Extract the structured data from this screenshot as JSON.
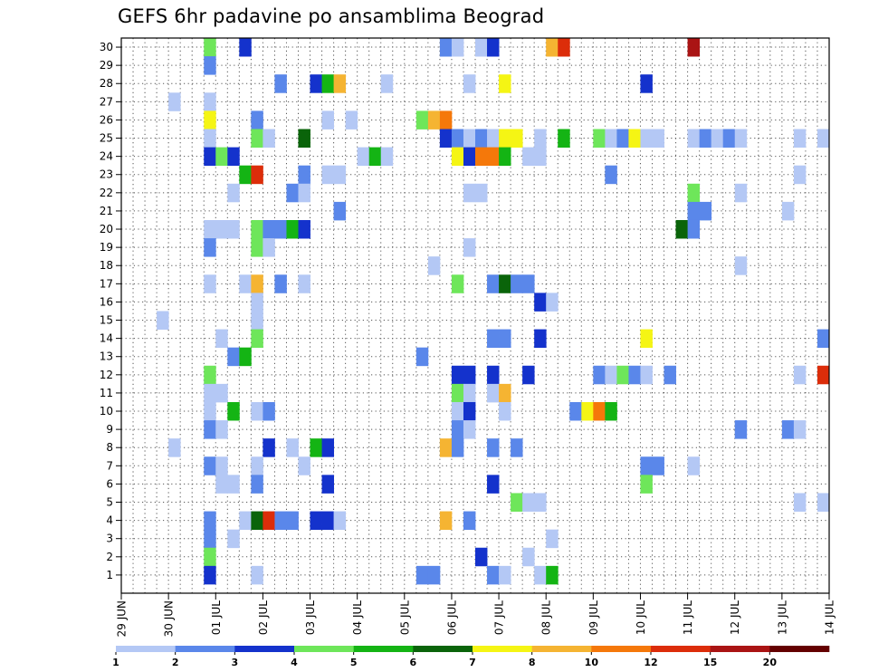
{
  "chart_data": {
    "type": "heatmap",
    "title": "GEFS 6hr padavine po ansamblima Beograd",
    "xlabel": "",
    "ylabel": "",
    "x_ticks": [
      "29 JUN",
      "30 JUN",
      "01 JUL",
      "02 JUL",
      "03 JUL",
      "04 JUL",
      "05 JUL",
      "06 JUL",
      "07 JUL",
      "08 JUL",
      "09 JUL",
      "10 JUL",
      "11 JUL",
      "12 JUL",
      "13 JUL",
      "14 JUL"
    ],
    "xlim": [
      0,
      60
    ],
    "y_ticks": [
      "1",
      "2",
      "3",
      "4",
      "5",
      "6",
      "7",
      "8",
      "9",
      "10",
      "11",
      "12",
      "13",
      "14",
      "15",
      "16",
      "17",
      "18",
      "19",
      "20",
      "21",
      "22",
      "23",
      "24",
      "25",
      "26",
      "27",
      "28",
      "29",
      "30"
    ],
    "ylim": [
      0,
      30
    ],
    "grid": true,
    "legend_position": "bottom",
    "legend_labels": [
      "1",
      "2",
      "3",
      "4",
      "5",
      "6",
      "7",
      "8",
      "10",
      "12",
      "15",
      "20"
    ],
    "level_colors": [
      "#b4c8f5",
      "#5a87ea",
      "#1432cc",
      "#6ee65a",
      "#14b414",
      "#0a640a",
      "#f5f514",
      "#f5b432",
      "#f5780a",
      "#dc2d0a",
      "#aa1414",
      "#640000"
    ],
    "cells": [
      {
        "member": 30,
        "t": 7,
        "level": 4
      },
      {
        "member": 30,
        "t": 10,
        "level": 3
      },
      {
        "member": 30,
        "t": 27,
        "level": 2
      },
      {
        "member": 30,
        "t": 28,
        "level": 1
      },
      {
        "member": 30,
        "t": 30,
        "level": 1
      },
      {
        "member": 30,
        "t": 31,
        "level": 3
      },
      {
        "member": 30,
        "t": 36,
        "level": 8
      },
      {
        "member": 30,
        "t": 37,
        "level": 10
      },
      {
        "member": 30,
        "t": 48,
        "level": 11
      },
      {
        "member": 29,
        "t": 7,
        "level": 2
      },
      {
        "member": 28,
        "t": 13,
        "level": 2
      },
      {
        "member": 28,
        "t": 16,
        "level": 3
      },
      {
        "member": 28,
        "t": 17,
        "level": 5
      },
      {
        "member": 28,
        "t": 18,
        "level": 8
      },
      {
        "member": 28,
        "t": 22,
        "level": 1
      },
      {
        "member": 28,
        "t": 29,
        "level": 1
      },
      {
        "member": 28,
        "t": 32,
        "level": 7
      },
      {
        "member": 28,
        "t": 44,
        "level": 3
      },
      {
        "member": 27,
        "t": 4,
        "level": 1
      },
      {
        "member": 27,
        "t": 7,
        "level": 1
      },
      {
        "member": 26,
        "t": 7,
        "level": 7
      },
      {
        "member": 26,
        "t": 11,
        "level": 2
      },
      {
        "member": 26,
        "t": 17,
        "level": 1
      },
      {
        "member": 26,
        "t": 19,
        "level": 1
      },
      {
        "member": 26,
        "t": 25,
        "level": 4
      },
      {
        "member": 26,
        "t": 26,
        "level": 8
      },
      {
        "member": 26,
        "t": 27,
        "level": 9
      },
      {
        "member": 25,
        "t": 7,
        "level": 1
      },
      {
        "member": 25,
        "t": 11,
        "level": 4
      },
      {
        "member": 25,
        "t": 12,
        "level": 1
      },
      {
        "member": 25,
        "t": 15,
        "level": 6
      },
      {
        "member": 25,
        "t": 27,
        "level": 3
      },
      {
        "member": 25,
        "t": 28,
        "level": 2
      },
      {
        "member": 25,
        "t": 29,
        "level": 1
      },
      {
        "member": 25,
        "t": 30,
        "level": 2
      },
      {
        "member": 25,
        "t": 31,
        "level": 1
      },
      {
        "member": 25,
        "t": 32,
        "level": 7
      },
      {
        "member": 25,
        "t": 33,
        "level": 7
      },
      {
        "member": 25,
        "t": 35,
        "level": 1
      },
      {
        "member": 25,
        "t": 37,
        "level": 5
      },
      {
        "member": 25,
        "t": 40,
        "level": 4
      },
      {
        "member": 25,
        "t": 41,
        "level": 1
      },
      {
        "member": 25,
        "t": 42,
        "level": 2
      },
      {
        "member": 25,
        "t": 43,
        "level": 7
      },
      {
        "member": 25,
        "t": 44,
        "level": 1
      },
      {
        "member": 25,
        "t": 45,
        "level": 1
      },
      {
        "member": 25,
        "t": 48,
        "level": 1
      },
      {
        "member": 25,
        "t": 49,
        "level": 2
      },
      {
        "member": 25,
        "t": 50,
        "level": 1
      },
      {
        "member": 25,
        "t": 51,
        "level": 2
      },
      {
        "member": 25,
        "t": 52,
        "level": 1
      },
      {
        "member": 25,
        "t": 57,
        "level": 1
      },
      {
        "member": 25,
        "t": 59,
        "level": 1
      },
      {
        "member": 24,
        "t": 7,
        "level": 3
      },
      {
        "member": 24,
        "t": 8,
        "level": 4
      },
      {
        "member": 24,
        "t": 9,
        "level": 3
      },
      {
        "member": 24,
        "t": 20,
        "level": 1
      },
      {
        "member": 24,
        "t": 21,
        "level": 5
      },
      {
        "member": 24,
        "t": 22,
        "level": 1
      },
      {
        "member": 24,
        "t": 28,
        "level": 7
      },
      {
        "member": 24,
        "t": 29,
        "level": 3
      },
      {
        "member": 24,
        "t": 30,
        "level": 9
      },
      {
        "member": 24,
        "t": 31,
        "level": 9
      },
      {
        "member": 24,
        "t": 32,
        "level": 5
      },
      {
        "member": 24,
        "t": 34,
        "level": 1
      },
      {
        "member": 24,
        "t": 35,
        "level": 1
      },
      {
        "member": 23,
        "t": 10,
        "level": 5
      },
      {
        "member": 23,
        "t": 11,
        "level": 10
      },
      {
        "member": 23,
        "t": 15,
        "level": 2
      },
      {
        "member": 23,
        "t": 17,
        "level": 1
      },
      {
        "member": 23,
        "t": 18,
        "level": 1
      },
      {
        "member": 23,
        "t": 41,
        "level": 2
      },
      {
        "member": 23,
        "t": 57,
        "level": 1
      },
      {
        "member": 22,
        "t": 9,
        "level": 1
      },
      {
        "member": 22,
        "t": 14,
        "level": 2
      },
      {
        "member": 22,
        "t": 15,
        "level": 1
      },
      {
        "member": 22,
        "t": 29,
        "level": 1
      },
      {
        "member": 22,
        "t": 30,
        "level": 1
      },
      {
        "member": 22,
        "t": 48,
        "level": 4
      },
      {
        "member": 22,
        "t": 52,
        "level": 1
      },
      {
        "member": 21,
        "t": 18,
        "level": 2
      },
      {
        "member": 21,
        "t": 48,
        "level": 2
      },
      {
        "member": 21,
        "t": 49,
        "level": 2
      },
      {
        "member": 21,
        "t": 56,
        "level": 1
      },
      {
        "member": 20,
        "t": 7,
        "level": 1
      },
      {
        "member": 20,
        "t": 8,
        "level": 1
      },
      {
        "member": 20,
        "t": 9,
        "level": 1
      },
      {
        "member": 20,
        "t": 11,
        "level": 4
      },
      {
        "member": 20,
        "t": 12,
        "level": 2
      },
      {
        "member": 20,
        "t": 13,
        "level": 2
      },
      {
        "member": 20,
        "t": 14,
        "level": 5
      },
      {
        "member": 20,
        "t": 15,
        "level": 3
      },
      {
        "member": 20,
        "t": 47,
        "level": 6
      },
      {
        "member": 20,
        "t": 48,
        "level": 2
      },
      {
        "member": 19,
        "t": 7,
        "level": 2
      },
      {
        "member": 19,
        "t": 11,
        "level": 4
      },
      {
        "member": 19,
        "t": 12,
        "level": 1
      },
      {
        "member": 19,
        "t": 29,
        "level": 1
      },
      {
        "member": 18,
        "t": 26,
        "level": 1
      },
      {
        "member": 18,
        "t": 52,
        "level": 1
      },
      {
        "member": 17,
        "t": 7,
        "level": 1
      },
      {
        "member": 17,
        "t": 10,
        "level": 1
      },
      {
        "member": 17,
        "t": 11,
        "level": 8
      },
      {
        "member": 17,
        "t": 13,
        "level": 2
      },
      {
        "member": 17,
        "t": 15,
        "level": 1
      },
      {
        "member": 17,
        "t": 28,
        "level": 4
      },
      {
        "member": 17,
        "t": 31,
        "level": 2
      },
      {
        "member": 17,
        "t": 32,
        "level": 6
      },
      {
        "member": 17,
        "t": 33,
        "level": 2
      },
      {
        "member": 17,
        "t": 34,
        "level": 2
      },
      {
        "member": 16,
        "t": 11,
        "level": 1
      },
      {
        "member": 16,
        "t": 35,
        "level": 3
      },
      {
        "member": 16,
        "t": 36,
        "level": 1
      },
      {
        "member": 15,
        "t": 3,
        "level": 1
      },
      {
        "member": 15,
        "t": 11,
        "level": 1
      },
      {
        "member": 14,
        "t": 8,
        "level": 1
      },
      {
        "member": 14,
        "t": 11,
        "level": 4
      },
      {
        "member": 14,
        "t": 31,
        "level": 2
      },
      {
        "member": 14,
        "t": 32,
        "level": 2
      },
      {
        "member": 14,
        "t": 35,
        "level": 3
      },
      {
        "member": 14,
        "t": 44,
        "level": 7
      },
      {
        "member": 14,
        "t": 59,
        "level": 2
      },
      {
        "member": 13,
        "t": 9,
        "level": 2
      },
      {
        "member": 13,
        "t": 10,
        "level": 5
      },
      {
        "member": 13,
        "t": 25,
        "level": 2
      },
      {
        "member": 12,
        "t": 7,
        "level": 4
      },
      {
        "member": 12,
        "t": 28,
        "level": 3
      },
      {
        "member": 12,
        "t": 29,
        "level": 3
      },
      {
        "member": 12,
        "t": 31,
        "level": 3
      },
      {
        "member": 12,
        "t": 34,
        "level": 3
      },
      {
        "member": 12,
        "t": 40,
        "level": 2
      },
      {
        "member": 12,
        "t": 41,
        "level": 1
      },
      {
        "member": 12,
        "t": 42,
        "level": 4
      },
      {
        "member": 12,
        "t": 43,
        "level": 2
      },
      {
        "member": 12,
        "t": 44,
        "level": 1
      },
      {
        "member": 12,
        "t": 46,
        "level": 2
      },
      {
        "member": 12,
        "t": 57,
        "level": 1
      },
      {
        "member": 12,
        "t": 59,
        "level": 10
      },
      {
        "member": 11,
        "t": 7,
        "level": 1
      },
      {
        "member": 11,
        "t": 8,
        "level": 1
      },
      {
        "member": 11,
        "t": 28,
        "level": 4
      },
      {
        "member": 11,
        "t": 29,
        "level": 1
      },
      {
        "member": 11,
        "t": 31,
        "level": 1
      },
      {
        "member": 11,
        "t": 32,
        "level": 8
      },
      {
        "member": 10,
        "t": 7,
        "level": 1
      },
      {
        "member": 10,
        "t": 9,
        "level": 5
      },
      {
        "member": 10,
        "t": 11,
        "level": 1
      },
      {
        "member": 10,
        "t": 12,
        "level": 2
      },
      {
        "member": 10,
        "t": 28,
        "level": 1
      },
      {
        "member": 10,
        "t": 29,
        "level": 3
      },
      {
        "member": 10,
        "t": 32,
        "level": 1
      },
      {
        "member": 10,
        "t": 38,
        "level": 2
      },
      {
        "member": 10,
        "t": 39,
        "level": 7
      },
      {
        "member": 10,
        "t": 40,
        "level": 9
      },
      {
        "member": 10,
        "t": 41,
        "level": 5
      },
      {
        "member": 9,
        "t": 7,
        "level": 2
      },
      {
        "member": 9,
        "t": 8,
        "level": 1
      },
      {
        "member": 9,
        "t": 28,
        "level": 2
      },
      {
        "member": 9,
        "t": 29,
        "level": 1
      },
      {
        "member": 9,
        "t": 52,
        "level": 2
      },
      {
        "member": 9,
        "t": 56,
        "level": 2
      },
      {
        "member": 9,
        "t": 57,
        "level": 1
      },
      {
        "member": 8,
        "t": 4,
        "level": 1
      },
      {
        "member": 8,
        "t": 12,
        "level": 3
      },
      {
        "member": 8,
        "t": 14,
        "level": 1
      },
      {
        "member": 8,
        "t": 16,
        "level": 5
      },
      {
        "member": 8,
        "t": 17,
        "level": 3
      },
      {
        "member": 8,
        "t": 27,
        "level": 8
      },
      {
        "member": 8,
        "t": 28,
        "level": 2
      },
      {
        "member": 8,
        "t": 31,
        "level": 2
      },
      {
        "member": 8,
        "t": 33,
        "level": 2
      },
      {
        "member": 7,
        "t": 7,
        "level": 2
      },
      {
        "member": 7,
        "t": 8,
        "level": 1
      },
      {
        "member": 7,
        "t": 11,
        "level": 1
      },
      {
        "member": 7,
        "t": 15,
        "level": 1
      },
      {
        "member": 7,
        "t": 44,
        "level": 2
      },
      {
        "member": 7,
        "t": 45,
        "level": 2
      },
      {
        "member": 7,
        "t": 48,
        "level": 1
      },
      {
        "member": 6,
        "t": 8,
        "level": 1
      },
      {
        "member": 6,
        "t": 9,
        "level": 1
      },
      {
        "member": 6,
        "t": 11,
        "level": 2
      },
      {
        "member": 6,
        "t": 17,
        "level": 3
      },
      {
        "member": 6,
        "t": 31,
        "level": 3
      },
      {
        "member": 6,
        "t": 44,
        "level": 4
      },
      {
        "member": 5,
        "t": 33,
        "level": 4
      },
      {
        "member": 5,
        "t": 34,
        "level": 1
      },
      {
        "member": 5,
        "t": 35,
        "level": 1
      },
      {
        "member": 5,
        "t": 57,
        "level": 1
      },
      {
        "member": 5,
        "t": 59,
        "level": 1
      },
      {
        "member": 4,
        "t": 7,
        "level": 2
      },
      {
        "member": 4,
        "t": 10,
        "level": 1
      },
      {
        "member": 4,
        "t": 11,
        "level": 6
      },
      {
        "member": 4,
        "t": 12,
        "level": 10
      },
      {
        "member": 4,
        "t": 13,
        "level": 2
      },
      {
        "member": 4,
        "t": 14,
        "level": 2
      },
      {
        "member": 4,
        "t": 16,
        "level": 3
      },
      {
        "member": 4,
        "t": 17,
        "level": 3
      },
      {
        "member": 4,
        "t": 18,
        "level": 1
      },
      {
        "member": 4,
        "t": 27,
        "level": 8
      },
      {
        "member": 4,
        "t": 29,
        "level": 2
      },
      {
        "member": 3,
        "t": 7,
        "level": 2
      },
      {
        "member": 3,
        "t": 9,
        "level": 1
      },
      {
        "member": 3,
        "t": 36,
        "level": 1
      },
      {
        "member": 2,
        "t": 7,
        "level": 4
      },
      {
        "member": 2,
        "t": 30,
        "level": 3
      },
      {
        "member": 2,
        "t": 34,
        "level": 1
      },
      {
        "member": 1,
        "t": 7,
        "level": 3
      },
      {
        "member": 1,
        "t": 11,
        "level": 1
      },
      {
        "member": 1,
        "t": 25,
        "level": 2
      },
      {
        "member": 1,
        "t": 26,
        "level": 2
      },
      {
        "member": 1,
        "t": 31,
        "level": 2
      },
      {
        "member": 1,
        "t": 32,
        "level": 1
      },
      {
        "member": 1,
        "t": 35,
        "level": 1
      },
      {
        "member": 1,
        "t": 36,
        "level": 5
      }
    ]
  }
}
